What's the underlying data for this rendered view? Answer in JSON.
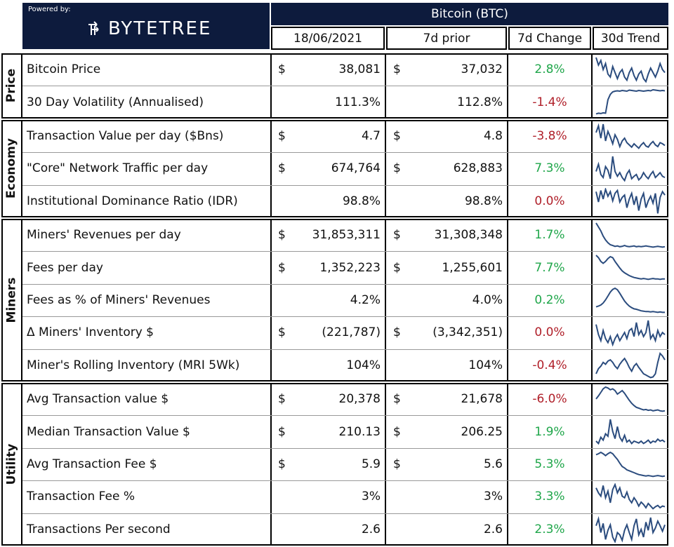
{
  "brand": {
    "powered_by": "Powered by:",
    "logo_text": "BYTETREE"
  },
  "header": {
    "group_title": "Bitcoin (BTC)",
    "columns": [
      "18/06/2021",
      "7d prior",
      "7d Change",
      "30d Trend"
    ]
  },
  "sections": [
    {
      "name": "Price",
      "rows": [
        {
          "label": "Bitcoin Price",
          "cur_dollar": "$",
          "cur": "38,081",
          "prior_dollar": "$",
          "prior": "37,032",
          "change": "2.8%",
          "trend": [
            60,
            55,
            58,
            52,
            56,
            49,
            47,
            54,
            50,
            46,
            50,
            52,
            47,
            45,
            50,
            53,
            48,
            45,
            49,
            51,
            46,
            44,
            49,
            53,
            50,
            47,
            51,
            56,
            52,
            50
          ]
        },
        {
          "label": "30 Day Volatility (Annualised)",
          "cur_dollar": "",
          "cur": "111.3%",
          "prior_dollar": "",
          "prior": "112.8%",
          "change": "-1.4%",
          "trend": [
            20,
            22,
            21,
            23,
            22,
            60,
            75,
            82,
            84,
            85,
            84,
            86,
            85,
            84,
            87,
            86,
            85,
            84,
            86,
            85,
            84,
            85,
            86,
            85,
            88,
            87,
            86,
            85,
            86,
            85
          ]
        }
      ]
    },
    {
      "name": "Economy",
      "rows": [
        {
          "label": "Transaction Value per day ($Bns)",
          "cur_dollar": "$",
          "cur": "4.7",
          "prior_dollar": "$",
          "prior": "4.8",
          "change": "-3.8%",
          "trend": [
            70,
            82,
            60,
            85,
            55,
            72,
            62,
            50,
            66,
            58,
            45,
            55,
            60,
            52,
            48,
            44,
            50,
            46,
            42,
            48,
            52,
            46,
            44,
            50,
            54,
            48,
            45,
            52,
            50,
            47
          ]
        },
        {
          "label": "\"Core\" Network Traffic per day",
          "cur_dollar": "$",
          "cur": "674,764",
          "prior_dollar": "$",
          "prior": "628,883",
          "change": "7.3%",
          "trend": [
            60,
            72,
            55,
            50,
            68,
            62,
            48,
            85,
            60,
            52,
            58,
            50,
            45,
            56,
            62,
            48,
            52,
            55,
            46,
            50,
            58,
            52,
            48,
            55,
            60,
            50,
            54,
            58,
            52,
            50
          ]
        },
        {
          "label": "Institutional Dominance Ratio (IDR)",
          "cur_dollar": "",
          "cur": "98.8%",
          "prior_dollar": "",
          "prior": "98.8%",
          "change": "0.0%",
          "trend": [
            88,
            70,
            90,
            75,
            92,
            80,
            88,
            72,
            85,
            90,
            70,
            78,
            82,
            60,
            75,
            85,
            65,
            80,
            55,
            75,
            85,
            60,
            72,
            80,
            68,
            85,
            50,
            78,
            88,
            82
          ]
        }
      ]
    },
    {
      "name": "Miners",
      "rows": [
        {
          "label": "Miners' Revenues per day",
          "cur_dollar": "$",
          "cur": "31,853,311",
          "prior_dollar": "$",
          "prior": "31,308,348",
          "change": "1.7%",
          "trend": [
            95,
            85,
            75,
            62,
            52,
            45,
            40,
            38,
            36,
            37,
            35,
            36,
            38,
            36,
            35,
            36,
            37,
            35,
            36,
            35,
            36,
            37,
            36,
            35,
            34,
            35,
            36,
            35,
            34,
            35
          ]
        },
        {
          "label": "Fees per day",
          "cur_dollar": "$",
          "cur": "1,352,223",
          "prior_dollar": "$",
          "prior": "1,255,601",
          "change": "7.7%",
          "trend": [
            75,
            70,
            62,
            58,
            62,
            68,
            72,
            70,
            62,
            55,
            48,
            42,
            38,
            35,
            32,
            30,
            28,
            27,
            26,
            25,
            26,
            25,
            24,
            25,
            26,
            25,
            25,
            24,
            25,
            25
          ]
        },
        {
          "label": "Fees as % of Miners' Revenues",
          "cur_dollar": "",
          "cur": "4.2%",
          "prior_dollar": "",
          "prior": "4.0%",
          "change": "0.2%",
          "trend": [
            30,
            32,
            35,
            40,
            48,
            58,
            68,
            75,
            78,
            74,
            65,
            55,
            45,
            38,
            32,
            28,
            25,
            24,
            22,
            20,
            19,
            18,
            18,
            17,
            18,
            17,
            16,
            17,
            16,
            16
          ]
        },
        {
          "label": "Δ Miners' Inventory $",
          "cur_dollar": "$",
          "cur": "(221,787)",
          "prior_dollar": "$",
          "prior": "(3,342,351)",
          "change": "0.0%",
          "trend": [
            70,
            45,
            30,
            55,
            35,
            25,
            40,
            20,
            35,
            45,
            30,
            40,
            50,
            35,
            55,
            60,
            40,
            75,
            45,
            55,
            40,
            50,
            80,
            35,
            45,
            30,
            55,
            40,
            50,
            45
          ]
        },
        {
          "label": "Miner's Rolling Inventory (MRI 5Wk)",
          "cur_dollar": "",
          "cur": "104%",
          "prior_dollar": "",
          "prior": "104%",
          "change": "-0.4%",
          "trend": [
            40,
            48,
            52,
            58,
            55,
            60,
            62,
            58,
            52,
            48,
            55,
            60,
            64,
            58,
            50,
            44,
            52,
            56,
            50,
            45,
            40,
            38,
            36,
            34,
            35,
            40,
            58,
            72,
            68,
            62
          ]
        }
      ]
    },
    {
      "name": "Utility",
      "rows": [
        {
          "label": "Avg Transaction value $",
          "cur_dollar": "$",
          "cur": "20,378",
          "prior_dollar": "$",
          "prior": "21,678",
          "change": "-6.0%",
          "trend": [
            55,
            62,
            70,
            78,
            82,
            80,
            76,
            78,
            74,
            66,
            70,
            74,
            68,
            60,
            52,
            45,
            40,
            36,
            34,
            32,
            30,
            31,
            29,
            30,
            28,
            29,
            30,
            28,
            27,
            28
          ]
        },
        {
          "label": "Median Transaction Value $",
          "cur_dollar": "$",
          "cur": "210.13",
          "prior_dollar": "$",
          "prior": "206.25",
          "change": "1.9%",
          "trend": [
            40,
            35,
            48,
            42,
            55,
            50,
            85,
            60,
            45,
            70,
            48,
            40,
            52,
            38,
            42,
            35,
            40,
            38,
            36,
            40,
            35,
            38,
            42,
            36,
            40,
            38,
            44,
            40,
            42,
            38
          ]
        },
        {
          "label": "Avg Transaction Fee $",
          "cur_dollar": "$",
          "cur": "5.9",
          "prior_dollar": "$",
          "prior": "5.6",
          "change": "5.3%",
          "trend": [
            70,
            72,
            75,
            72,
            68,
            72,
            75,
            72,
            66,
            60,
            52,
            45,
            42,
            38,
            36,
            34,
            32,
            30,
            28,
            27,
            26,
            25,
            26,
            25,
            24,
            25,
            26,
            25,
            24,
            25
          ]
        },
        {
          "label": "Transaction Fee %",
          "cur_dollar": "",
          "cur": "3%",
          "prior_dollar": "",
          "prior": "3%",
          "change": "3.3%",
          "trend": [
            85,
            70,
            60,
            92,
            55,
            75,
            40,
            80,
            95,
            70,
            85,
            60,
            55,
            72,
            50,
            40,
            55,
            45,
            30,
            42,
            35,
            25,
            38,
            30,
            22,
            28,
            32,
            25,
            30,
            28
          ]
        },
        {
          "label": "Transactions Per second",
          "cur_dollar": "",
          "cur": "2.6",
          "prior_dollar": "",
          "prior": "2.6",
          "change": "2.3%",
          "trend": [
            70,
            85,
            55,
            75,
            40,
            60,
            72,
            45,
            35,
            55,
            50,
            38,
            60,
            72,
            55,
            40,
            70,
            85,
            50,
            62,
            45,
            78,
            60,
            88,
            55,
            65,
            80,
            70,
            58,
            72
          ]
        }
      ]
    }
  ],
  "chart_data": {
    "type": "table",
    "title": "Bitcoin (BTC)",
    "columns": [
      "18/06/2021",
      "7d prior",
      "7d Change",
      "30d Trend"
    ],
    "rows": [
      [
        "Bitcoin Price",
        "$38,081",
        "$37,032",
        "2.8%"
      ],
      [
        "30 Day Volatility (Annualised)",
        "111.3%",
        "112.8%",
        "-1.4%"
      ],
      [
        "Transaction Value per day ($Bns)",
        "$4.7",
        "$4.8",
        "-3.8%"
      ],
      [
        "\"Core\" Network Traffic per day",
        "$674,764",
        "$628,883",
        "7.3%"
      ],
      [
        "Institutional Dominance Ratio (IDR)",
        "98.8%",
        "98.8%",
        "0.0%"
      ],
      [
        "Miners' Revenues per day",
        "$31,853,311",
        "$31,308,348",
        "1.7%"
      ],
      [
        "Fees per day",
        "$1,352,223",
        "$1,255,601",
        "7.7%"
      ],
      [
        "Fees as % of Miners' Revenues",
        "4.2%",
        "4.0%",
        "0.2%"
      ],
      [
        "Δ Miners' Inventory $",
        "$(221,787)",
        "$(3,342,351)",
        "0.0%"
      ],
      [
        "Miner's Rolling Inventory (MRI 5Wk)",
        "104%",
        "104%",
        "-0.4%"
      ],
      [
        "Avg Transaction value $",
        "$20,378",
        "$21,678",
        "-6.0%"
      ],
      [
        "Median Transaction Value $",
        "$210.13",
        "$206.25",
        "1.9%"
      ],
      [
        "Avg Transaction Fee $",
        "$5.9",
        "$5.6",
        "5.3%"
      ],
      [
        "Transaction Fee %",
        "3%",
        "3%",
        "3.3%"
      ],
      [
        "Transactions Per second",
        "2.6",
        "2.6",
        "2.3%"
      ]
    ]
  },
  "colors": {
    "navy": "#0d1b3d",
    "positive": "#1fa64a",
    "negative": "#b0202a",
    "sparkline": "#2b4c7e"
  }
}
